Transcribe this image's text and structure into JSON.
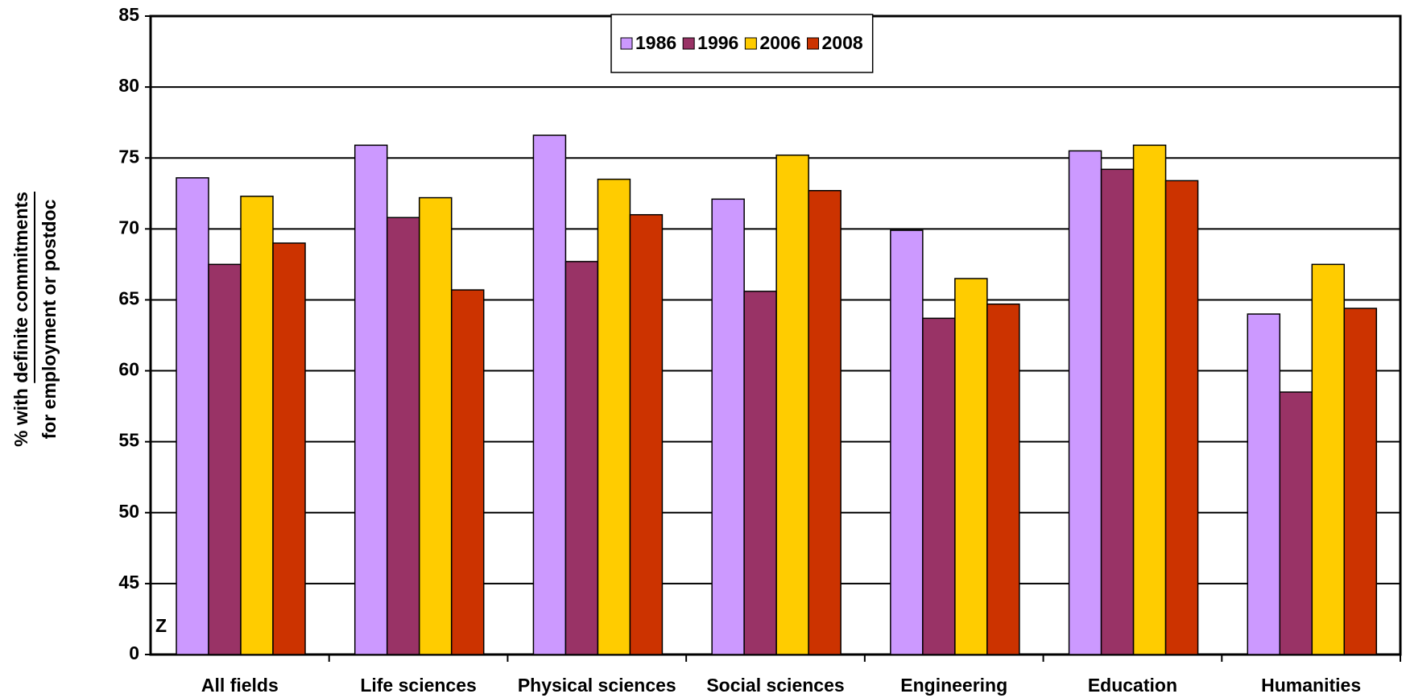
{
  "chart_data": {
    "type": "bar",
    "y_label": [
      "% with definite commitments",
      "for employment or postdoc"
    ],
    "y_label_underline": "definite commitments",
    "categories": [
      "All fields",
      "Life sciences",
      "Physical sciences",
      "Social sciences",
      "Engineering",
      "Education",
      "Humanities"
    ],
    "series": [
      {
        "name": "1986",
        "color": "#cc99ff",
        "values": [
          73.6,
          75.9,
          76.6,
          72.1,
          69.9,
          75.5,
          64.0
        ]
      },
      {
        "name": "1996",
        "color": "#993366",
        "values": [
          67.5,
          70.8,
          67.7,
          65.6,
          63.7,
          74.2,
          58.5
        ]
      },
      {
        "name": "2006",
        "color": "#ffcc00",
        "values": [
          72.3,
          72.2,
          73.5,
          75.2,
          66.5,
          75.9,
          67.5
        ]
      },
      {
        "name": "2008",
        "color": "#cc3300",
        "values": [
          69.0,
          65.7,
          71.0,
          72.7,
          64.7,
          73.4,
          64.4
        ]
      }
    ],
    "ylim": [
      0,
      85
    ],
    "yticks": [
      0,
      45,
      50,
      55,
      60,
      65,
      70,
      75,
      80,
      85
    ],
    "axis_break": [
      0,
      45
    ],
    "axis_break_label": "Z",
    "grid": true,
    "legend": "top"
  }
}
